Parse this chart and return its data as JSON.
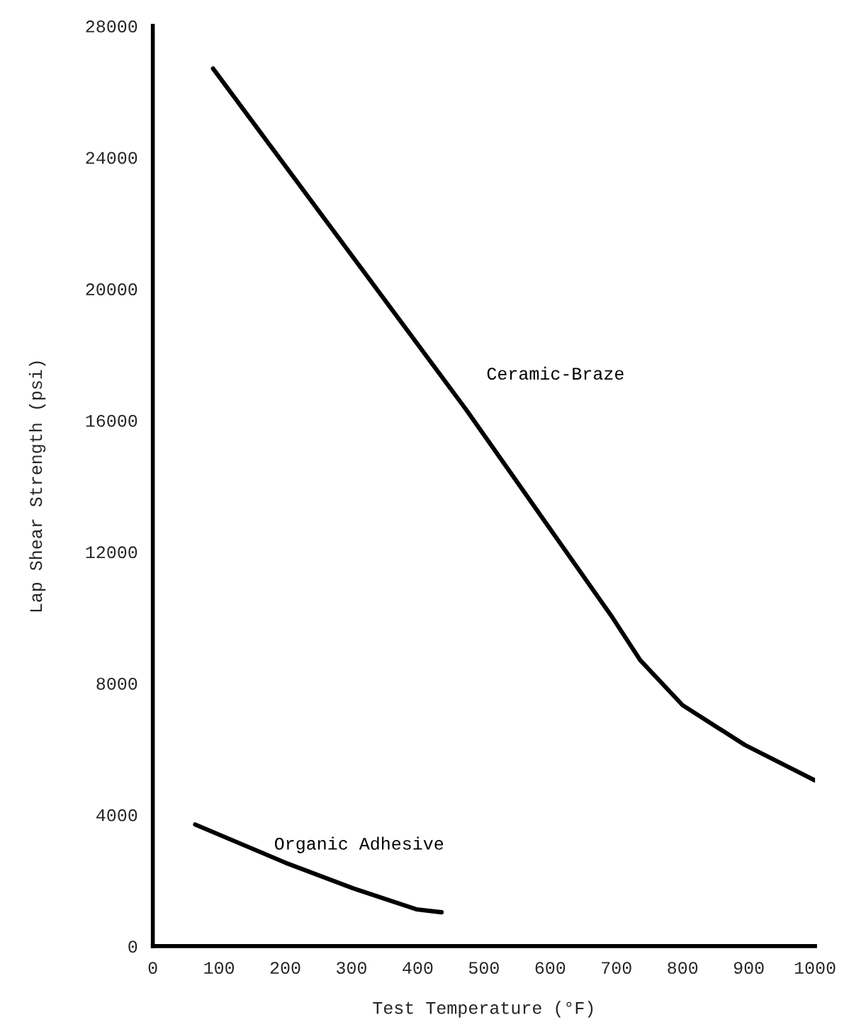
{
  "chart_data": {
    "type": "line",
    "xlabel": "Test Temperature (°F)",
    "ylabel": "Lap Shear Strength (psi)",
    "xlim": [
      0,
      1000
    ],
    "ylim": [
      0,
      28000
    ],
    "xticks": [
      0,
      100,
      200,
      300,
      400,
      500,
      600,
      700,
      800,
      900,
      1000
    ],
    "yticks": [
      0,
      4000,
      8000,
      12000,
      16000,
      20000,
      24000,
      28000
    ],
    "grid": false,
    "legend": false,
    "marker": "none",
    "line_style": "solid",
    "series": [
      {
        "name": "Ceramic-Braze",
        "color": "#000000",
        "x": [
          91,
          474,
          694,
          736,
          800,
          894,
          1000
        ],
        "values": [
          26700,
          16300,
          10000,
          8700,
          7330,
          6120,
          5040
        ]
      },
      {
        "name": "Organic Adhesive",
        "color": "#000000",
        "x": [
          64,
          200,
          302,
          398,
          436
        ],
        "values": [
          3700,
          2540,
          1760,
          1120,
          1030
        ]
      }
    ]
  }
}
